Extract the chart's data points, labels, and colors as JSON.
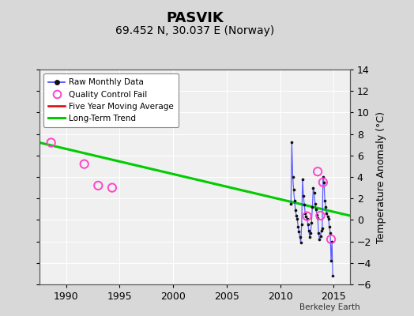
{
  "title": "PASVIK",
  "subtitle": "69.452 N, 30.037 E (Norway)",
  "ylabel": "Temperature Anomaly (°C)",
  "credit": "Berkeley Earth",
  "xlim": [
    1987.5,
    2016.5
  ],
  "ylim": [
    -6,
    14
  ],
  "yticks": [
    -6,
    -4,
    -2,
    0,
    2,
    4,
    6,
    8,
    10,
    12,
    14
  ],
  "xticks": [
    1990,
    1995,
    2000,
    2005,
    2010,
    2015
  ],
  "fig_bg_color": "#d8d8d8",
  "plot_bg_color": "#f0f0f0",
  "raw_monthly_x": [
    2011.0,
    2011.083,
    2011.167,
    2011.25,
    2011.333,
    2011.417,
    2011.5,
    2011.583,
    2011.667,
    2011.75,
    2011.833,
    2011.917,
    2012.0,
    2012.083,
    2012.167,
    2012.25,
    2012.333,
    2012.417,
    2012.5,
    2012.583,
    2012.667,
    2012.75,
    2012.833,
    2012.917,
    2013.0,
    2013.083,
    2013.167,
    2013.25,
    2013.333,
    2013.417,
    2013.5,
    2013.583,
    2013.667,
    2013.75,
    2013.833,
    2013.917,
    2014.0,
    2014.083,
    2014.167,
    2014.25,
    2014.333,
    2014.417,
    2014.5,
    2014.583,
    2014.667,
    2014.75,
    2014.833,
    2014.917
  ],
  "raw_monthly_y": [
    1.5,
    7.2,
    4.0,
    2.8,
    1.8,
    0.9,
    0.4,
    0.1,
    -0.6,
    -1.1,
    -1.6,
    -2.1,
    -0.4,
    3.8,
    2.2,
    1.4,
    0.6,
    0.3,
    0.1,
    -0.4,
    -1.0,
    -1.6,
    -1.2,
    -0.3,
    1.2,
    3.0,
    2.5,
    1.5,
    1.0,
    0.5,
    0.2,
    -1.2,
    -1.8,
    -1.5,
    -1.0,
    -0.8,
    4.0,
    3.5,
    1.8,
    1.2,
    0.6,
    0.3,
    0.1,
    -0.6,
    -1.2,
    -3.8,
    -2.0,
    -5.2
  ],
  "qc_fail_x": [
    1988.6,
    1991.7,
    1993.0,
    1994.3,
    2012.5,
    2013.5,
    2013.75,
    2014.0,
    2014.75
  ],
  "qc_fail_y": [
    7.2,
    5.2,
    3.2,
    3.0,
    0.35,
    4.5,
    0.4,
    3.5,
    -1.8
  ],
  "trend_x": [
    1987.5,
    2016.5
  ],
  "trend_y": [
    7.2,
    0.4
  ],
  "raw_line_color": "#4444ff",
  "raw_marker_color": "#111111",
  "qc_color": "#ff44cc",
  "trend_color": "#00cc00",
  "moving_avg_color": "#dd0000",
  "grid_color": "#ffffff",
  "title_fontsize": 13,
  "subtitle_fontsize": 10,
  "tick_fontsize": 9,
  "ylabel_fontsize": 9
}
